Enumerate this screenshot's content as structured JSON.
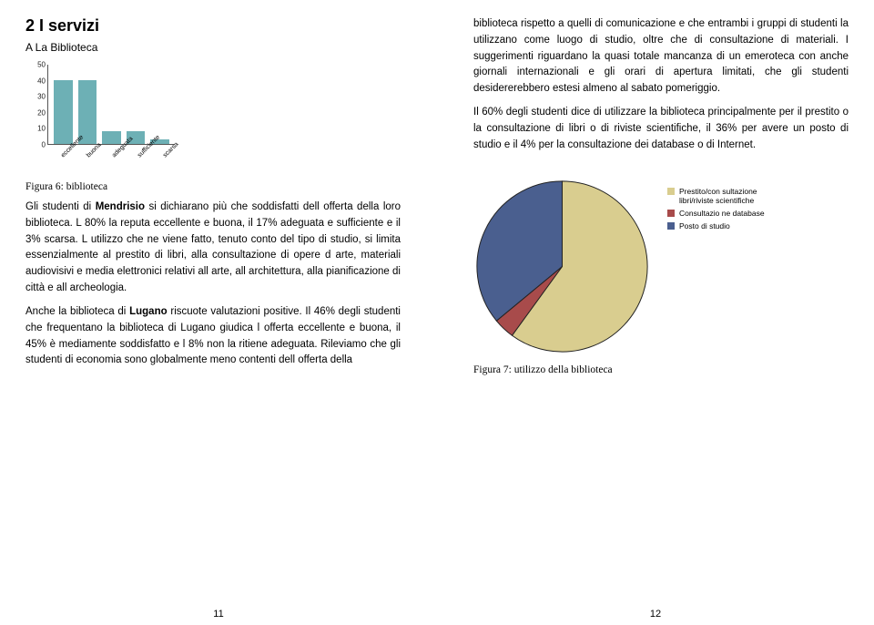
{
  "left": {
    "heading": "2  I servizi",
    "sub": "A La Biblioteca",
    "bar_chart": {
      "type": "bar",
      "categories": [
        "eccellente",
        "buona",
        "adeguata",
        "sufficiente",
        "scarsa"
      ],
      "values": [
        40,
        40,
        8,
        8,
        3
      ],
      "ylim": [
        0,
        50
      ],
      "yticks": [
        0,
        10,
        20,
        30,
        40,
        50
      ],
      "bar_color": "#6db0b5",
      "axis_color": "#555555",
      "tick_fontsize": 8
    },
    "caption": "Figura 6: biblioteca",
    "para1_a": "Gli studenti di ",
    "para1_bold": "Mendrisio",
    "para1_b": " si dichiarano più che soddisfatti dell offerta della loro biblioteca. L 80% la reputa eccellente e buona, il 17% adeguata e sufficiente e il 3% scarsa. L utilizzo che ne viene fatto, tenuto conto del tipo di studio, si limita essenzialmente al prestito di libri, alla consulta­zione di opere d arte, materiali audiovisivi e media elettronici relativi all arte, all architettura, alla pianificazione di città e all archeologia.",
    "para2_a": "Anche la biblioteca di ",
    "para2_bold": "Lugano",
    "para2_b": " riscuote valutazioni positive. Il 46% degli studenti che frequentano la biblioteca di Lugano giudica l offerta eccellente e buona, il 45% è mediamente soddisfatto e l 8% non la ritiene adeguata. Rileviamo che gli studenti di economia sono globalmente meno contenti dell offerta della",
    "pagenum": "11"
  },
  "right": {
    "para1": "biblioteca rispetto a quelli di comunicazione e che entrambi i gruppi di studenti la utilizzano come luogo di studio, oltre che di consultazione di materiali. I suggerimenti riguardano la quasi totale mancanza di un emeroteca con anche giornali internazionali e gli orari di apertura limitati, che gli studenti desidererebbero estesi almeno al sabato pomeriggio.",
    "para2": "Il 60% degli studenti dice di utilizzare la biblioteca principalmente per il prestito o la consultazione di libri o di riviste scientifiche, il 36% per avere un posto di studio e il 4% per la consultazione dei database o di Internet.",
    "pie_chart": {
      "type": "pie",
      "slices": [
        {
          "label": "Prestito/con sultazione libri/riviste scientifiche",
          "value": 60,
          "color": "#d9cd8f"
        },
        {
          "label": "Consultazio ne database",
          "value": 4,
          "color": "#a84b4b"
        },
        {
          "label": "Posto di studio",
          "value": 36,
          "color": "#4a5f8f"
        }
      ],
      "stroke": "#222222",
      "legend_fontsize": 8.5
    },
    "caption": "Figura 7: utilizzo della biblioteca",
    "pagenum": "12"
  }
}
